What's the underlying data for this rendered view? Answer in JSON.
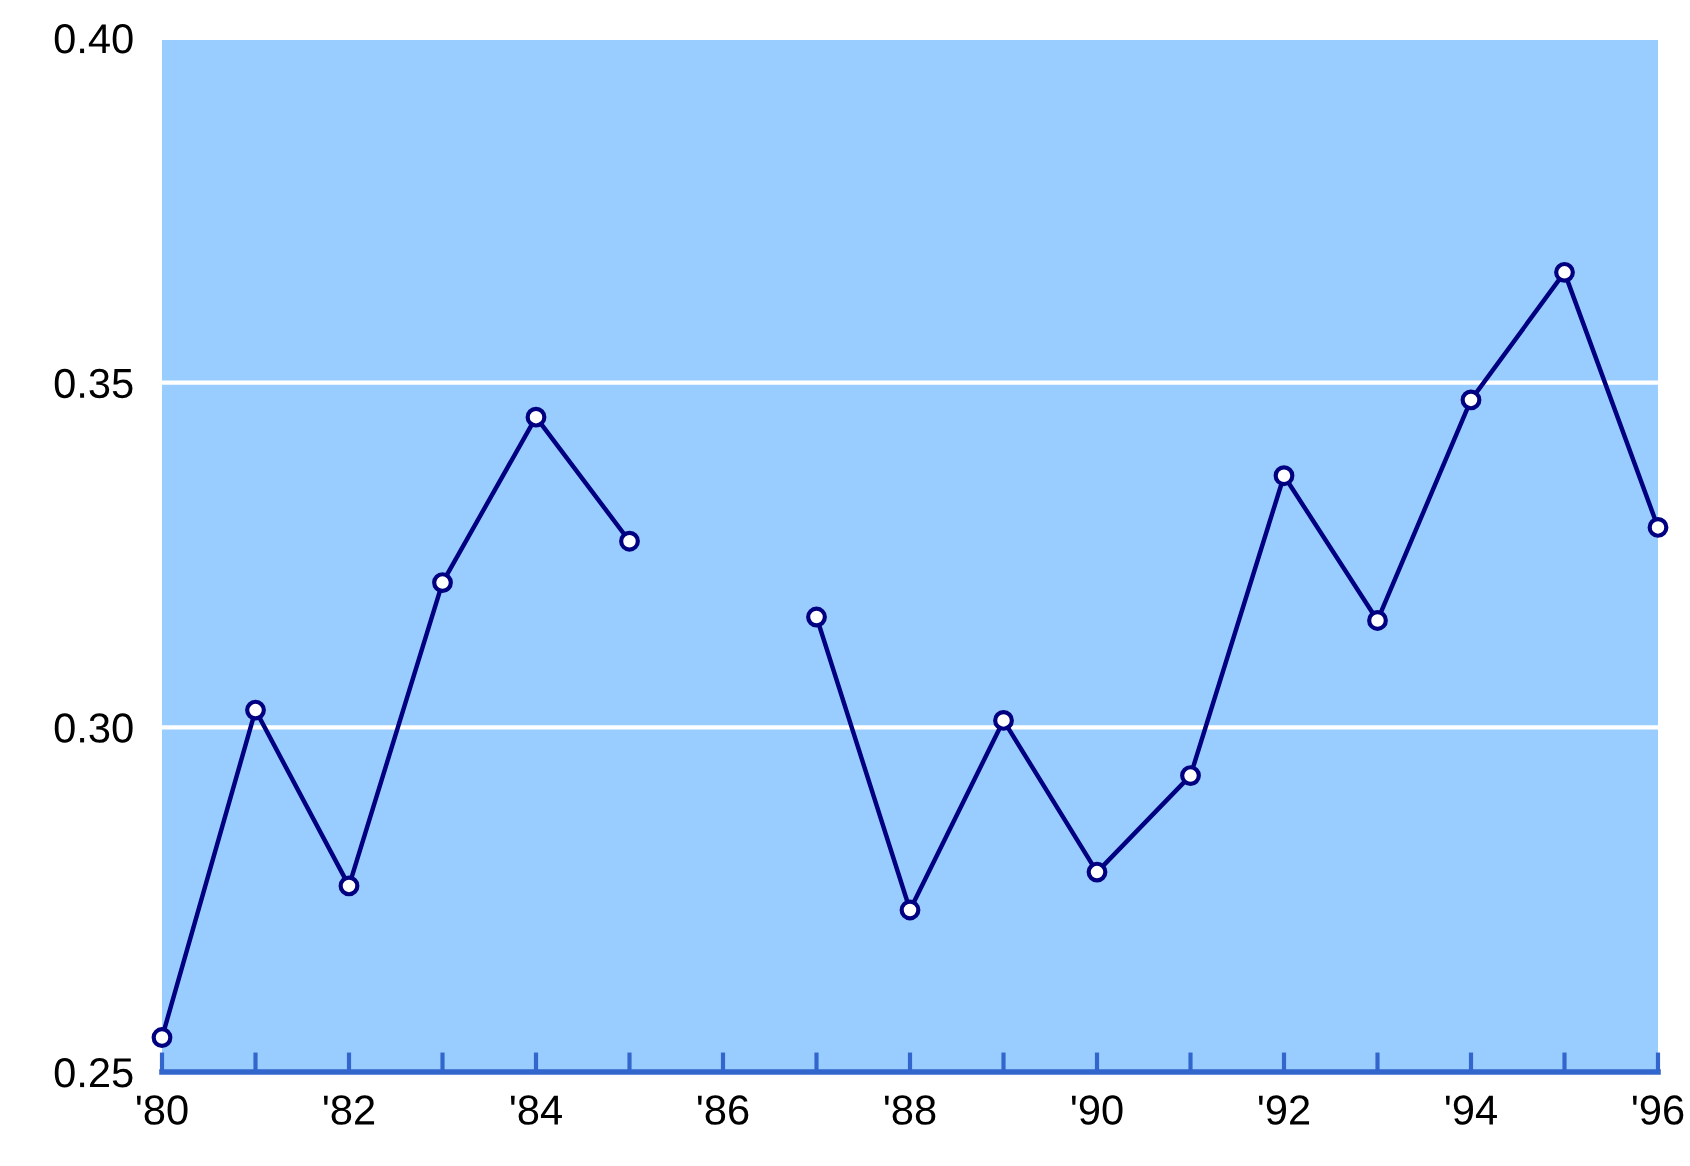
{
  "chart_data": {
    "type": "line",
    "x": [
      1980,
      1981,
      1982,
      1983,
      1984,
      1985,
      1986,
      1987,
      1988,
      1989,
      1990,
      1991,
      1992,
      1993,
      1994,
      1995,
      1996
    ],
    "series": [
      {
        "color": "#000080",
        "values": [
          0.255,
          0.3025,
          0.277,
          0.321,
          0.345,
          0.327,
          null,
          0.316,
          0.2735,
          0.301,
          0.279,
          0.293,
          0.3365,
          0.3155,
          0.3475,
          0.366,
          0.329
        ]
      }
    ],
    "xlim": [
      1980,
      1996
    ],
    "ylim": [
      0.25,
      0.4
    ],
    "xticks": [
      {
        "value": 1980,
        "label": "'80"
      },
      {
        "value": 1981,
        "label": null
      },
      {
        "value": 1982,
        "label": "'82"
      },
      {
        "value": 1983,
        "label": null
      },
      {
        "value": 1984,
        "label": "'84"
      },
      {
        "value": 1985,
        "label": null
      },
      {
        "value": 1986,
        "label": "'86"
      },
      {
        "value": 1987,
        "label": null
      },
      {
        "value": 1988,
        "label": "'88"
      },
      {
        "value": 1989,
        "label": null
      },
      {
        "value": 1990,
        "label": "'90"
      },
      {
        "value": 1991,
        "label": null
      },
      {
        "value": 1992,
        "label": "'92"
      },
      {
        "value": 1993,
        "label": null
      },
      {
        "value": 1994,
        "label": "'94"
      },
      {
        "value": 1995,
        "label": null
      },
      {
        "value": 1996,
        "label": "'96"
      }
    ],
    "yticks": [
      {
        "value": 0.25,
        "label": "0.25"
      },
      {
        "value": 0.3,
        "label": "0.30"
      },
      {
        "value": 0.35,
        "label": "0.35"
      },
      {
        "value": 0.4,
        "label": "0.40"
      }
    ],
    "grid": "y",
    "marker": "circle",
    "line_style": "solid"
  }
}
